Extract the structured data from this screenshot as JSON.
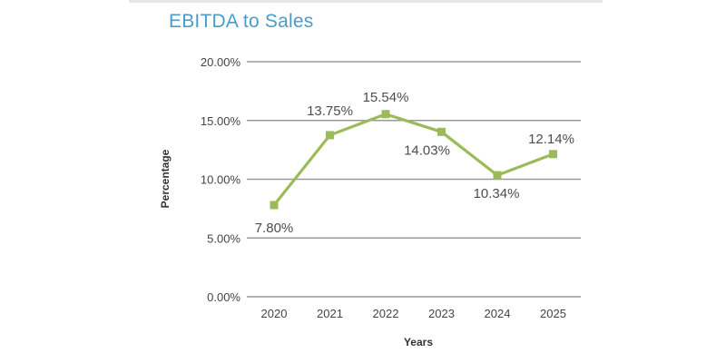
{
  "chart_data": {
    "type": "line",
    "title": "EBITDA to Sales",
    "xlabel": "Years",
    "ylabel": "Percentage",
    "categories": [
      "2020",
      "2021",
      "2022",
      "2023",
      "2024",
      "2025"
    ],
    "values": [
      7.8,
      13.75,
      15.54,
      14.03,
      10.34,
      12.14
    ],
    "data_labels": [
      "7.80%",
      "13.75%",
      "15.54%",
      "14.03%",
      "10.34%",
      "12.14%"
    ],
    "y_ticks": [
      "0.00%",
      "5.00%",
      "10.00%",
      "15.00%",
      "20.00%"
    ],
    "ylim": [
      0,
      20
    ],
    "grid": true,
    "legend": "none",
    "colors": {
      "line": "#9bbb59",
      "grid": "#9a9a9a",
      "title": "#4a9cc6"
    }
  }
}
